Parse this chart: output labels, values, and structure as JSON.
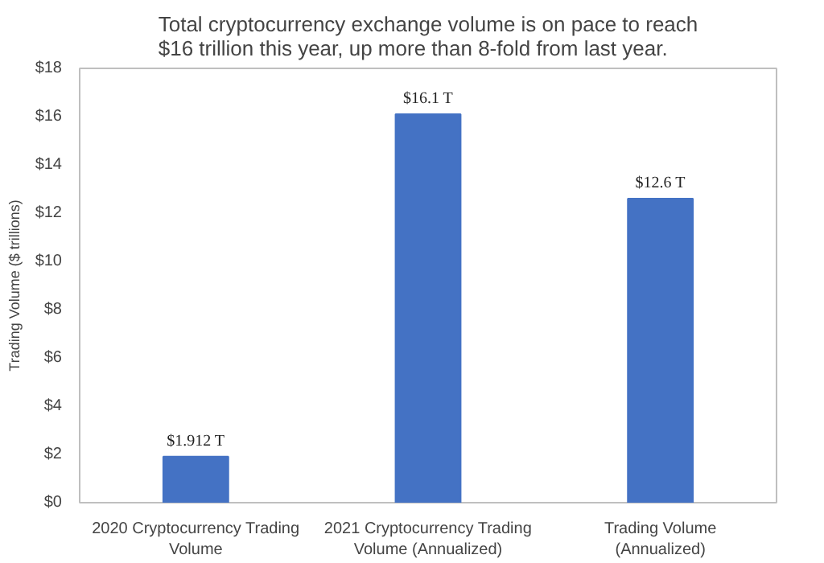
{
  "chart_data": {
    "type": "bar",
    "title": "Total cryptocurrency exchange volume is on pace to reach\n$16 trillion this year, up more than 8-fold from last year.",
    "ylabel": "Trading Volume ($ trillions)",
    "categories": [
      "2020 Cryptocurrency Trading\nVolume",
      "2021 Cryptocurrency Trading\nVolume (Annualized)",
      "Trading Volume\n(Annualized)"
    ],
    "values": [
      1.912,
      16.1,
      12.6
    ],
    "color": "#4472c4",
    "value_labels": [
      "$1.912 T",
      "$16.1 T",
      "$12.6 T"
    ],
    "ylim": [
      0,
      18
    ],
    "yticks": [
      {
        "value": 0,
        "label": "$0"
      },
      {
        "value": 2,
        "label": "$2"
      },
      {
        "value": 4,
        "label": "$4"
      },
      {
        "value": 6,
        "label": "$6"
      },
      {
        "value": 8,
        "label": "$8"
      },
      {
        "value": 10,
        "label": "$10"
      },
      {
        "value": 12,
        "label": "$12"
      },
      {
        "value": 14,
        "label": "$14"
      },
      {
        "value": 16,
        "label": "$16"
      },
      {
        "value": 18,
        "label": "$18"
      }
    ],
    "grid": false
  }
}
